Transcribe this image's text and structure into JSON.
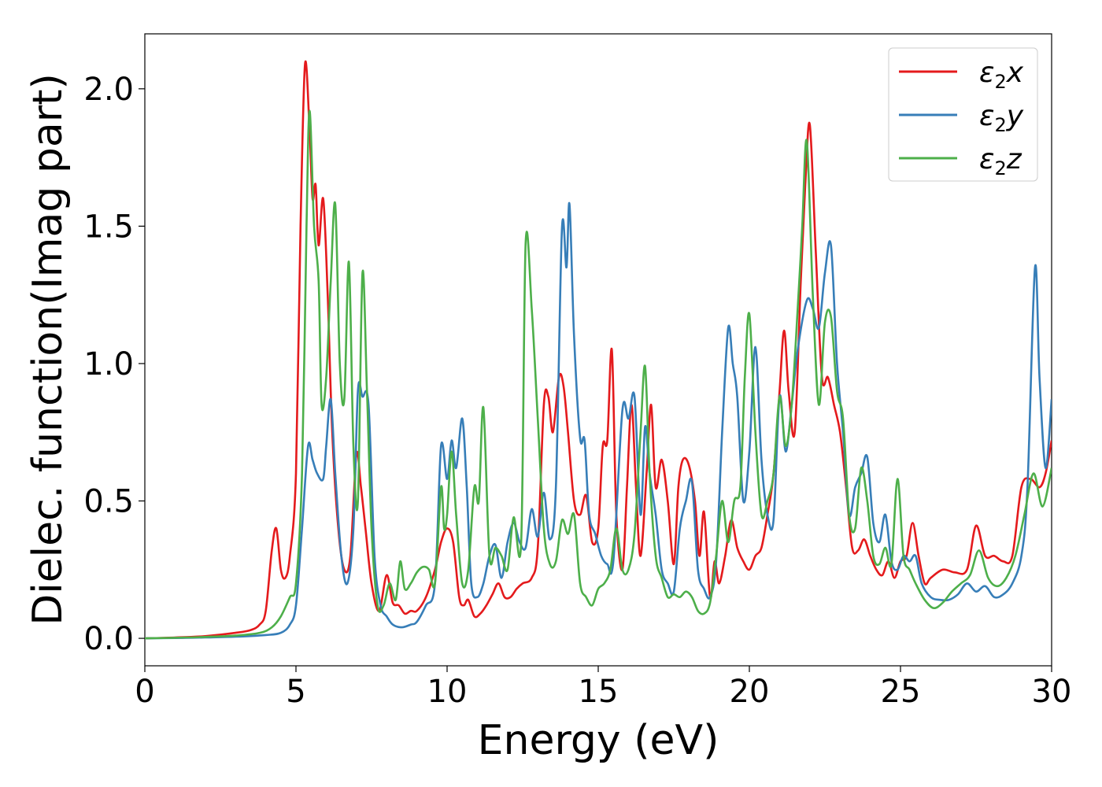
{
  "chart_data": {
    "type": "line",
    "title": "",
    "xlabel": "Energy (eV)",
    "ylabel": "Dielec. function(Imag part)",
    "xlim": [
      0,
      30
    ],
    "ylim": [
      -0.1,
      2.2
    ],
    "xticks": [
      0,
      5,
      10,
      15,
      20,
      25,
      30
    ],
    "yticks": [
      0.0,
      0.5,
      1.0,
      1.5,
      2.0
    ],
    "xtick_labels": [
      "0",
      "5",
      "10",
      "15",
      "20",
      "25",
      "30"
    ],
    "ytick_labels": [
      "0.0",
      "0.5",
      "1.0",
      "1.5",
      "2.0"
    ],
    "grid": false,
    "legend_position": "top-right",
    "series": [
      {
        "name": "ε₂x",
        "legend_base": "ε",
        "legend_sub": "2",
        "legend_comp": "x",
        "color": "#e41a1c",
        "x": [
          0,
          1,
          2,
          3,
          3.5,
          3.8,
          4.0,
          4.2,
          4.35,
          4.5,
          4.65,
          4.8,
          5.0,
          5.15,
          5.3,
          5.45,
          5.55,
          5.65,
          5.75,
          5.9,
          6.05,
          6.2,
          6.4,
          6.6,
          6.8,
          7.0,
          7.15,
          7.3,
          7.5,
          7.75,
          8.0,
          8.2,
          8.4,
          8.6,
          8.8,
          9.0,
          9.3,
          9.6,
          9.8,
          10.0,
          10.2,
          10.4,
          10.55,
          10.7,
          10.9,
          11.1,
          11.3,
          11.5,
          11.7,
          11.9,
          12.1,
          12.3,
          12.5,
          12.8,
          13.0,
          13.2,
          13.35,
          13.5,
          13.7,
          13.85,
          14.0,
          14.2,
          14.4,
          14.6,
          14.8,
          15.0,
          15.15,
          15.3,
          15.45,
          15.6,
          15.8,
          15.95,
          16.1,
          16.25,
          16.4,
          16.6,
          16.75,
          16.9,
          17.1,
          17.3,
          17.5,
          17.65,
          17.8,
          18.0,
          18.2,
          18.35,
          18.5,
          18.7,
          18.85,
          19.0,
          19.2,
          19.4,
          19.6,
          19.8,
          20.0,
          20.2,
          20.4,
          20.6,
          20.8,
          21.0,
          21.15,
          21.3,
          21.5,
          21.7,
          21.85,
          22.0,
          22.2,
          22.4,
          22.6,
          22.8,
          23.0,
          23.2,
          23.4,
          23.6,
          23.8,
          24.0,
          24.2,
          24.4,
          24.6,
          24.8,
          25.0,
          25.2,
          25.4,
          25.6,
          25.8,
          26.0,
          26.4,
          26.8,
          27.2,
          27.5,
          27.8,
          28.1,
          28.4,
          28.7,
          29.0,
          29.3,
          29.6,
          29.8,
          30.0
        ],
        "y": [
          0.0,
          0.003,
          0.008,
          0.02,
          0.03,
          0.05,
          0.1,
          0.32,
          0.4,
          0.25,
          0.22,
          0.3,
          0.6,
          1.5,
          2.09,
          1.85,
          1.6,
          1.65,
          1.43,
          1.6,
          1.25,
          0.75,
          0.4,
          0.25,
          0.3,
          0.67,
          0.55,
          0.4,
          0.2,
          0.1,
          0.23,
          0.13,
          0.12,
          0.09,
          0.1,
          0.1,
          0.15,
          0.25,
          0.35,
          0.4,
          0.35,
          0.15,
          0.12,
          0.14,
          0.08,
          0.09,
          0.12,
          0.16,
          0.2,
          0.15,
          0.15,
          0.18,
          0.2,
          0.22,
          0.33,
          0.85,
          0.88,
          0.75,
          0.95,
          0.92,
          0.75,
          0.5,
          0.45,
          0.52,
          0.35,
          0.4,
          0.7,
          0.72,
          1.05,
          0.45,
          0.25,
          0.55,
          0.85,
          0.55,
          0.3,
          0.6,
          0.85,
          0.55,
          0.65,
          0.5,
          0.27,
          0.55,
          0.65,
          0.63,
          0.5,
          0.3,
          0.46,
          0.15,
          0.28,
          0.2,
          0.3,
          0.43,
          0.33,
          0.28,
          0.25,
          0.3,
          0.33,
          0.45,
          0.6,
          0.9,
          1.12,
          0.9,
          0.75,
          1.3,
          1.65,
          1.87,
          1.4,
          0.95,
          0.95,
          0.85,
          0.75,
          0.55,
          0.33,
          0.32,
          0.36,
          0.3,
          0.25,
          0.23,
          0.28,
          0.22,
          0.28,
          0.3,
          0.42,
          0.3,
          0.2,
          0.22,
          0.25,
          0.24,
          0.25,
          0.41,
          0.3,
          0.3,
          0.28,
          0.3,
          0.55,
          0.58,
          0.55,
          0.6,
          0.72
        ]
      },
      {
        "name": "ε₂y",
        "legend_base": "ε",
        "legend_sub": "2",
        "legend_comp": "y",
        "color": "#377eb8",
        "x": [
          0,
          1,
          2,
          3,
          4.0,
          4.5,
          4.8,
          5.0,
          5.2,
          5.4,
          5.55,
          5.7,
          5.9,
          6.0,
          6.15,
          6.3,
          6.5,
          6.7,
          6.9,
          7.05,
          7.2,
          7.4,
          7.6,
          7.8,
          8.0,
          8.2,
          8.5,
          8.8,
          9.0,
          9.3,
          9.6,
          9.8,
          10.0,
          10.15,
          10.3,
          10.5,
          10.65,
          10.8,
          11.0,
          11.2,
          11.4,
          11.6,
          11.8,
          12.0,
          12.2,
          12.4,
          12.6,
          12.8,
          13.0,
          13.2,
          13.4,
          13.6,
          13.8,
          13.95,
          14.05,
          14.2,
          14.4,
          14.55,
          14.7,
          14.9,
          15.1,
          15.3,
          15.5,
          15.8,
          16.0,
          16.2,
          16.4,
          16.55,
          16.7,
          16.9,
          17.1,
          17.3,
          17.5,
          17.7,
          17.9,
          18.1,
          18.3,
          18.5,
          18.7,
          18.9,
          19.1,
          19.3,
          19.45,
          19.6,
          19.8,
          20.0,
          20.2,
          20.4,
          20.6,
          20.8,
          21.0,
          21.2,
          21.4,
          21.6,
          21.9,
          22.1,
          22.3,
          22.5,
          22.7,
          22.9,
          23.1,
          23.3,
          23.5,
          23.7,
          23.9,
          24.1,
          24.3,
          24.5,
          24.7,
          24.9,
          25.1,
          25.3,
          25.5,
          25.7,
          26.0,
          26.3,
          26.6,
          26.9,
          27.2,
          27.5,
          27.8,
          28.1,
          28.4,
          28.7,
          29.0,
          29.2,
          29.45,
          29.6,
          29.8,
          30.0
        ],
        "y": [
          0.0,
          0.001,
          0.003,
          0.006,
          0.012,
          0.02,
          0.05,
          0.12,
          0.4,
          0.7,
          0.65,
          0.6,
          0.58,
          0.7,
          0.87,
          0.6,
          0.3,
          0.2,
          0.4,
          0.9,
          0.88,
          0.85,
          0.3,
          0.12,
          0.08,
          0.05,
          0.04,
          0.05,
          0.06,
          0.12,
          0.2,
          0.7,
          0.58,
          0.72,
          0.62,
          0.8,
          0.55,
          0.2,
          0.15,
          0.2,
          0.3,
          0.34,
          0.22,
          0.35,
          0.42,
          0.35,
          0.33,
          0.47,
          0.37,
          0.53,
          0.36,
          0.55,
          1.49,
          1.35,
          1.58,
          1.1,
          0.73,
          0.72,
          0.45,
          0.38,
          0.3,
          0.27,
          0.28,
          0.83,
          0.8,
          0.88,
          0.45,
          0.77,
          0.6,
          0.45,
          0.25,
          0.2,
          0.17,
          0.4,
          0.5,
          0.57,
          0.25,
          0.18,
          0.15,
          0.28,
          0.75,
          1.13,
          1.0,
          0.88,
          0.5,
          0.68,
          1.06,
          0.65,
          0.45,
          0.43,
          0.88,
          0.68,
          0.85,
          1.05,
          1.23,
          1.2,
          1.13,
          1.33,
          1.43,
          1.0,
          0.75,
          0.45,
          0.55,
          0.6,
          0.66,
          0.42,
          0.35,
          0.45,
          0.28,
          0.25,
          0.3,
          0.28,
          0.3,
          0.2,
          0.15,
          0.14,
          0.14,
          0.16,
          0.2,
          0.17,
          0.19,
          0.15,
          0.16,
          0.2,
          0.3,
          0.55,
          1.35,
          0.95,
          0.62,
          0.87
        ]
      },
      {
        "name": "ε₂z",
        "legend_base": "ε",
        "legend_sub": "2",
        "legend_comp": "z",
        "color": "#4daf4a",
        "x": [
          0,
          1,
          2,
          3,
          3.8,
          4.2,
          4.5,
          4.8,
          5.0,
          5.2,
          5.35,
          5.45,
          5.6,
          5.75,
          5.85,
          6.0,
          6.15,
          6.3,
          6.45,
          6.6,
          6.75,
          6.9,
          7.05,
          7.2,
          7.35,
          7.5,
          7.7,
          7.9,
          8.1,
          8.3,
          8.45,
          8.6,
          8.8,
          9.0,
          9.2,
          9.4,
          9.6,
          9.8,
          9.9,
          10.0,
          10.15,
          10.3,
          10.5,
          10.7,
          10.9,
          11.05,
          11.2,
          11.4,
          11.6,
          11.8,
          12.0,
          12.2,
          12.45,
          12.6,
          12.8,
          13.0,
          13.2,
          13.4,
          13.6,
          13.8,
          14.0,
          14.2,
          14.4,
          14.6,
          14.8,
          15.0,
          15.2,
          15.4,
          15.6,
          15.8,
          16.0,
          16.2,
          16.4,
          16.55,
          16.7,
          16.9,
          17.1,
          17.3,
          17.5,
          17.7,
          17.9,
          18.1,
          18.3,
          18.5,
          18.7,
          18.9,
          19.1,
          19.3,
          19.5,
          19.7,
          19.85,
          20.0,
          20.2,
          20.4,
          20.6,
          20.8,
          21.0,
          21.2,
          21.4,
          21.6,
          21.75,
          21.9,
          22.1,
          22.3,
          22.5,
          22.7,
          22.9,
          23.1,
          23.3,
          23.5,
          23.7,
          23.9,
          24.1,
          24.3,
          24.5,
          24.7,
          24.9,
          25.1,
          25.3,
          25.5,
          25.8,
          26.1,
          26.4,
          26.7,
          27.0,
          27.3,
          27.6,
          27.9,
          28.2,
          28.5,
          28.8,
          29.1,
          29.4,
          29.7,
          30.0
        ],
        "y": [
          0.0,
          0.002,
          0.005,
          0.01,
          0.02,
          0.04,
          0.08,
          0.15,
          0.2,
          0.6,
          1.5,
          1.92,
          1.5,
          1.3,
          0.85,
          0.95,
          1.3,
          1.58,
          1.0,
          0.87,
          1.37,
          0.7,
          0.5,
          1.33,
          0.9,
          0.4,
          0.12,
          0.12,
          0.2,
          0.14,
          0.28,
          0.18,
          0.2,
          0.24,
          0.26,
          0.25,
          0.2,
          0.55,
          0.4,
          0.45,
          0.68,
          0.45,
          0.2,
          0.25,
          0.55,
          0.5,
          0.84,
          0.3,
          0.33,
          0.3,
          0.25,
          0.44,
          0.35,
          1.44,
          1.2,
          0.8,
          0.4,
          0.27,
          0.28,
          0.43,
          0.38,
          0.45,
          0.2,
          0.15,
          0.12,
          0.18,
          0.2,
          0.25,
          0.4,
          0.25,
          0.25,
          0.38,
          0.75,
          0.99,
          0.6,
          0.3,
          0.22,
          0.15,
          0.16,
          0.15,
          0.17,
          0.15,
          0.1,
          0.09,
          0.13,
          0.3,
          0.5,
          0.35,
          0.5,
          0.55,
          0.95,
          1.18,
          0.75,
          0.45,
          0.5,
          0.6,
          0.88,
          0.7,
          0.85,
          1.2,
          1.5,
          1.81,
          1.25,
          0.85,
          1.15,
          1.17,
          0.9,
          0.8,
          0.45,
          0.4,
          0.62,
          0.5,
          0.3,
          0.27,
          0.33,
          0.27,
          0.58,
          0.3,
          0.25,
          0.2,
          0.14,
          0.11,
          0.13,
          0.17,
          0.2,
          0.23,
          0.32,
          0.22,
          0.19,
          0.22,
          0.3,
          0.45,
          0.6,
          0.48,
          0.62
        ]
      }
    ]
  }
}
